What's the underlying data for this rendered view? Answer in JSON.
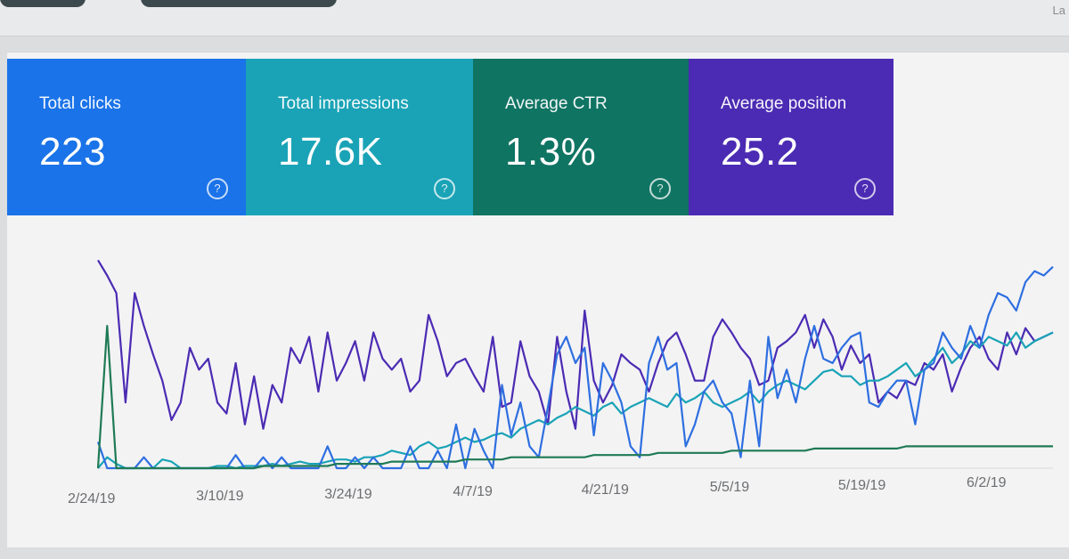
{
  "header": {
    "right_text": "La"
  },
  "metrics": [
    {
      "label": "Total clicks",
      "value": "223",
      "color": "#1a73e8"
    },
    {
      "label": "Total impressions",
      "value": "17.6K",
      "color": "#1aa3b6"
    },
    {
      "label": "Average CTR",
      "value": "1.3%",
      "color": "#107463"
    },
    {
      "label": "Average position",
      "value": "25.2",
      "color": "#4b2bb3"
    }
  ],
  "help_glyph": "?",
  "chart_data": {
    "type": "line",
    "x_ticks": [
      "2/24/19",
      "3/10/19",
      "3/24/19",
      "4/7/19",
      "4/21/19",
      "5/5/19",
      "5/19/19",
      "6/2/19"
    ],
    "series": [
      {
        "color": "#4b2bb3",
        "values": [
          95,
          88,
          80,
          30,
          80,
          65,
          52,
          40,
          22,
          30,
          55,
          45,
          50,
          30,
          25,
          48,
          20,
          42,
          18,
          38,
          30,
          55,
          48,
          60,
          35,
          62,
          40,
          48,
          58,
          40,
          62,
          50,
          45,
          50,
          35,
          40,
          70,
          58,
          42,
          48,
          50,
          42,
          35,
          60,
          28,
          30,
          58,
          42,
          35,
          20,
          60,
          35,
          18,
          72,
          40,
          30,
          38,
          52,
          48,
          45,
          35,
          48,
          58,
          62,
          52,
          40,
          40,
          60,
          68,
          62,
          55,
          50,
          38,
          40,
          55,
          58,
          62,
          70,
          55,
          68,
          60,
          45,
          56,
          48,
          52,
          30,
          35,
          32,
          40,
          38,
          48,
          45,
          52,
          35,
          46,
          55,
          60,
          50,
          45,
          62,
          52,
          64,
          58,
          60,
          62
        ]
      },
      {
        "color": "#1aa3b6",
        "values": [
          0,
          5,
          2,
          0,
          0,
          0,
          0,
          4,
          3,
          0,
          0,
          0,
          0,
          1,
          1,
          0,
          1,
          1,
          1,
          2,
          1,
          2,
          3,
          2,
          2,
          3,
          4,
          4,
          3,
          5,
          5,
          6,
          8,
          7,
          6,
          10,
          12,
          9,
          10,
          12,
          14,
          12,
          13,
          15,
          16,
          14,
          18,
          20,
          22,
          20,
          23,
          25,
          28,
          26,
          24,
          28,
          30,
          25,
          28,
          30,
          32,
          30,
          28,
          34,
          30,
          32,
          35,
          30,
          28,
          30,
          32,
          35,
          30,
          35,
          38,
          40,
          38,
          36,
          40,
          44,
          45,
          42,
          42,
          38,
          40,
          40,
          42,
          45,
          48,
          42,
          45,
          50,
          55,
          48,
          52,
          58,
          55,
          60,
          58,
          56,
          62,
          55,
          58,
          60,
          62
        ]
      },
      {
        "color": "#2e6fe0",
        "values": [
          12,
          0,
          0,
          0,
          0,
          5,
          0,
          0,
          0,
          0,
          0,
          0,
          0,
          0,
          0,
          6,
          0,
          0,
          5,
          0,
          5,
          0,
          0,
          0,
          0,
          10,
          0,
          0,
          5,
          0,
          5,
          0,
          0,
          0,
          10,
          0,
          0,
          8,
          0,
          20,
          0,
          18,
          8,
          0,
          38,
          15,
          30,
          10,
          5,
          28,
          52,
          60,
          48,
          55,
          15,
          48,
          40,
          30,
          10,
          5,
          48,
          60,
          45,
          48,
          10,
          20,
          35,
          40,
          30,
          25,
          5,
          40,
          10,
          60,
          32,
          45,
          30,
          50,
          65,
          50,
          48,
          55,
          60,
          62,
          30,
          28,
          35,
          40,
          40,
          20,
          45,
          48,
          62,
          55,
          50,
          65,
          55,
          70,
          80,
          78,
          72,
          85,
          90,
          88,
          92
        ]
      },
      {
        "color": "#1f7a55",
        "values": [
          0,
          65,
          0,
          0,
          0,
          0,
          0,
          0,
          0,
          0,
          0,
          0,
          0,
          0,
          0,
          0,
          0,
          0,
          1,
          1,
          1,
          1,
          1,
          1,
          1,
          1,
          2,
          2,
          2,
          2,
          2,
          2,
          3,
          3,
          3,
          3,
          3,
          3,
          3,
          3,
          4,
          4,
          4,
          4,
          4,
          5,
          5,
          5,
          5,
          5,
          5,
          5,
          5,
          5,
          6,
          6,
          6,
          6,
          6,
          6,
          6,
          7,
          7,
          7,
          7,
          7,
          7,
          7,
          7,
          8,
          8,
          8,
          8,
          8,
          8,
          8,
          8,
          8,
          9,
          9,
          9,
          9,
          9,
          9,
          9,
          9,
          9,
          9,
          10,
          10,
          10,
          10,
          10,
          10,
          10,
          10,
          10,
          10,
          10,
          10,
          10,
          10,
          10,
          10,
          10
        ]
      }
    ],
    "ylim": [
      0,
      100
    ],
    "grid": false,
    "legend": "none"
  }
}
